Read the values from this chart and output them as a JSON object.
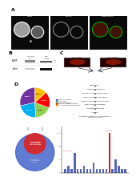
{
  "bg_color": "#ffffff",
  "panel_a": {
    "label": "A",
    "subpanels": [
      "DNA",
      "Biotin",
      "DNA/Biotin"
    ]
  },
  "panel_b": {
    "label": "B",
    "col_labels": [
      "Cell Sur.\nFrac.",
      "Cell\nLysate"
    ],
    "rows": [
      "EGFR",
      "Actin"
    ],
    "mw_egfr": [
      "250",
      "80"
    ],
    "mw_actin": [
      "46"
    ]
  },
  "panel_c": {
    "label": "C",
    "steps": [
      "Biotinylation",
      "Quenching with Glycine",
      "Lyse with 0.1% SDS and 1% NP-40",
      "Incubate with Streptavidin Beads",
      "Elute biotinylated proteins using DTT",
      "Digest Using FASP method",
      "IEF-based Fractionation",
      "LC-MS/MS",
      "Go-based Filtering Cell Surface Proteins &\nStatistical Analysis"
    ]
  },
  "panel_d": {
    "label": "D",
    "pie_slices": [
      {
        "label": "Membrane Complex",
        "value": 28.5,
        "color": "#7030a0"
      },
      {
        "label": "Cell Interface",
        "value": 22.3,
        "color": "#00b0f0"
      },
      {
        "label": "Extracellular Region",
        "value": 18.6,
        "color": "#92d050"
      },
      {
        "label": "Integral to plasma membrane",
        "value": 17.4,
        "color": "#ff0000"
      },
      {
        "label": "Anchored to plasma membrane",
        "value": 13.2,
        "color": "#ffc000"
      }
    ],
    "venn_big_color": "#4466cc",
    "venn_small_color": "#dd2222",
    "venn_big_label": "Cell Surface\nProteins from\nSW620",
    "venn_small_label": "Cell Surface\nProteins from\nSW480",
    "venn_overlap_label": "1217 Proteins\nidentified in\nboth cell lines",
    "bar_x": [
      1,
      2,
      3,
      4,
      5,
      6,
      7,
      8,
      9,
      10,
      11,
      12,
      13,
      14,
      15,
      16,
      17,
      18,
      19,
      20
    ],
    "bar_heights": [
      1,
      2,
      1,
      6,
      1,
      1,
      2,
      1,
      1,
      3,
      1,
      1,
      1,
      1,
      12,
      1,
      4,
      2,
      1,
      1
    ],
    "bar_colors": [
      "#5566bb",
      "#5566bb",
      "#5566bb",
      "#5566bb",
      "#5566bb",
      "#5566bb",
      "#5566bb",
      "#5566bb",
      "#5566bb",
      "#5566bb",
      "#5566bb",
      "#5566bb",
      "#5566bb",
      "#5566bb",
      "#cc2222",
      "#5566bb",
      "#5566bb",
      "#5566bb",
      "#5566bb",
      "#5566bb"
    ]
  }
}
